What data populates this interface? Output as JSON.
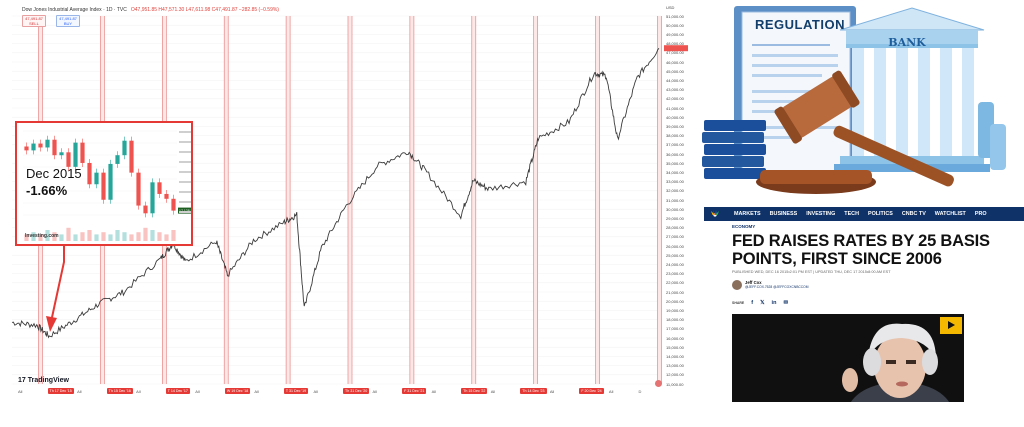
{
  "chart": {
    "title": "Dow Jones Industrial Average Index · 1D · TVC",
    "ohlc": "O47,951.85 H47,571.30 L47,611.98 C47,491.87 −282.85 (−0.59%)",
    "pill_sell": {
      "price": "47,491.87",
      "label": "SELL"
    },
    "pill_buy": {
      "price": "47,491.87",
      "label": "BUY"
    },
    "currency": "USD",
    "brand": "TradingView",
    "colors": {
      "up": "#26a69a",
      "down": "#ef5350",
      "price": "#3a3a3a",
      "marker": "#e53935"
    }
  },
  "chart_data": {
    "type": "line",
    "y_ticks": [
      "51,000.00",
      "50,000.00",
      "49,000.00",
      "48,000.00",
      "47,000.00",
      "46,000.00",
      "45,000.00",
      "44,000.00",
      "43,000.00",
      "42,000.00",
      "41,000.00",
      "40,000.00",
      "39,000.00",
      "38,000.00",
      "37,000.00",
      "36,000.00",
      "35,000.00",
      "34,000.00",
      "33,000.00",
      "32,000.00",
      "31,000.00",
      "30,000.00",
      "29,000.00",
      "28,000.00",
      "27,000.00",
      "26,000.00",
      "25,000.00",
      "24,000.00",
      "23,000.00",
      "22,000.00",
      "21,000.00",
      "20,000.00",
      "19,000.00",
      "18,000.00",
      "17,000.00",
      "16,000.00",
      "15,000.00",
      "14,000.00",
      "13,000.00",
      "12,000.00",
      "11,000.00"
    ],
    "ylim": [
      11000,
      51000
    ],
    "x_labels": [
      {
        "text": "All",
        "kind": "plain"
      },
      {
        "text": "Th  17 Dec '15",
        "kind": "hike"
      },
      {
        "text": "All",
        "kind": "plain"
      },
      {
        "text": "Th  15 Dec '16",
        "kind": "hike"
      },
      {
        "text": "All",
        "kind": "plain"
      },
      {
        "text": "T  14 Dec '17",
        "kind": "hike"
      },
      {
        "text": "All",
        "kind": "plain"
      },
      {
        "text": "W  19 Dec '18",
        "kind": "hike"
      },
      {
        "text": "All",
        "kind": "plain"
      },
      {
        "text": "T  31 Dec '19",
        "kind": "hike"
      },
      {
        "text": "All",
        "kind": "plain"
      },
      {
        "text": "Th  31 Dec '20",
        "kind": "hike"
      },
      {
        "text": "All",
        "kind": "plain"
      },
      {
        "text": "F  31 Dec '21",
        "kind": "hike"
      },
      {
        "text": "All",
        "kind": "plain"
      },
      {
        "text": "Th  15 Dec '22",
        "kind": "hike"
      },
      {
        "text": "All",
        "kind": "plain"
      },
      {
        "text": "Th  14 Dec '23",
        "kind": "hike"
      },
      {
        "text": "All",
        "kind": "plain"
      },
      {
        "text": "F  20 Dec '24",
        "kind": "hike"
      },
      {
        "text": "All",
        "kind": "plain"
      },
      {
        "text": "D",
        "kind": "plain"
      }
    ],
    "series": [
      {
        "x": [
          2015.5,
          2015.9,
          2016.1,
          2016.5,
          2016.9,
          2017.3,
          2017.9,
          2018.1,
          2018.3,
          2018.8,
          2018.98,
          2019.4,
          2019.9,
          2020.1,
          2020.22,
          2020.5,
          2020.9,
          2021.4,
          2021.9,
          2022.2,
          2022.75,
          2022.95,
          2023.2,
          2023.8,
          2024.0,
          2024.5,
          2024.9,
          2025.1,
          2025.28,
          2025.6,
          2025.95
        ],
        "y": [
          17700,
          17400,
          16200,
          17900,
          19700,
          21000,
          24600,
          26300,
          24300,
          26500,
          22800,
          26600,
          28600,
          29400,
          19200,
          25800,
          30400,
          34700,
          36300,
          34000,
          29300,
          33100,
          32200,
          33000,
          37700,
          39500,
          44800,
          44500,
          37600,
          44300,
          47500
        ]
      }
    ],
    "marker_years": [
      2015,
      2016,
      2017,
      2018,
      2019,
      2020,
      2021,
      2022,
      2023,
      2024,
      2025
    ]
  },
  "inset": {
    "date": "Dec 2015",
    "change": "-1.66%",
    "brand": "Investing.com",
    "last_price": "17,128.55",
    "closes": [
      17750,
      17820,
      17780,
      17860,
      17700,
      17730,
      17580,
      17830,
      17620,
      17400,
      17520,
      17240,
      17610,
      17700,
      17850,
      17520,
      17180,
      17100,
      17420,
      17300,
      17250,
      17128
    ],
    "volumes": [
      3,
      4,
      3,
      5,
      4,
      3,
      6,
      3,
      4,
      5,
      3,
      4,
      3,
      5,
      4,
      3,
      4,
      6,
      5,
      4,
      3,
      5
    ],
    "colors": {
      "up": "#26a69a",
      "down": "#ef5350",
      "price_tag": "#1b5e20"
    }
  },
  "regulation": {
    "document_title": "REGULATION",
    "building_title": "BANK"
  },
  "news": {
    "nav": [
      "MARKETS",
      "BUSINESS",
      "INVESTING",
      "TECH",
      "POLITICS",
      "CNBC TV",
      "WATCHLIST",
      "PRO"
    ],
    "section": "ECONOMY",
    "headline": "FED RAISES RATES BY 25 BASIS POINTS, FIRST SINCE 2006",
    "meta": "PUBLISHED WED, DEC 16 2015•2:01 PM EST | UPDATED THU, DEC 17 2015•8:00 AM EST",
    "author_name": "Jeff Cox",
    "author_handle": "@JEFF.COX.7528 @JEFFCOXCNBCCOM",
    "share_label": "SHARE",
    "share_icons": [
      "f",
      "𝕏",
      "in",
      "✉"
    ]
  }
}
